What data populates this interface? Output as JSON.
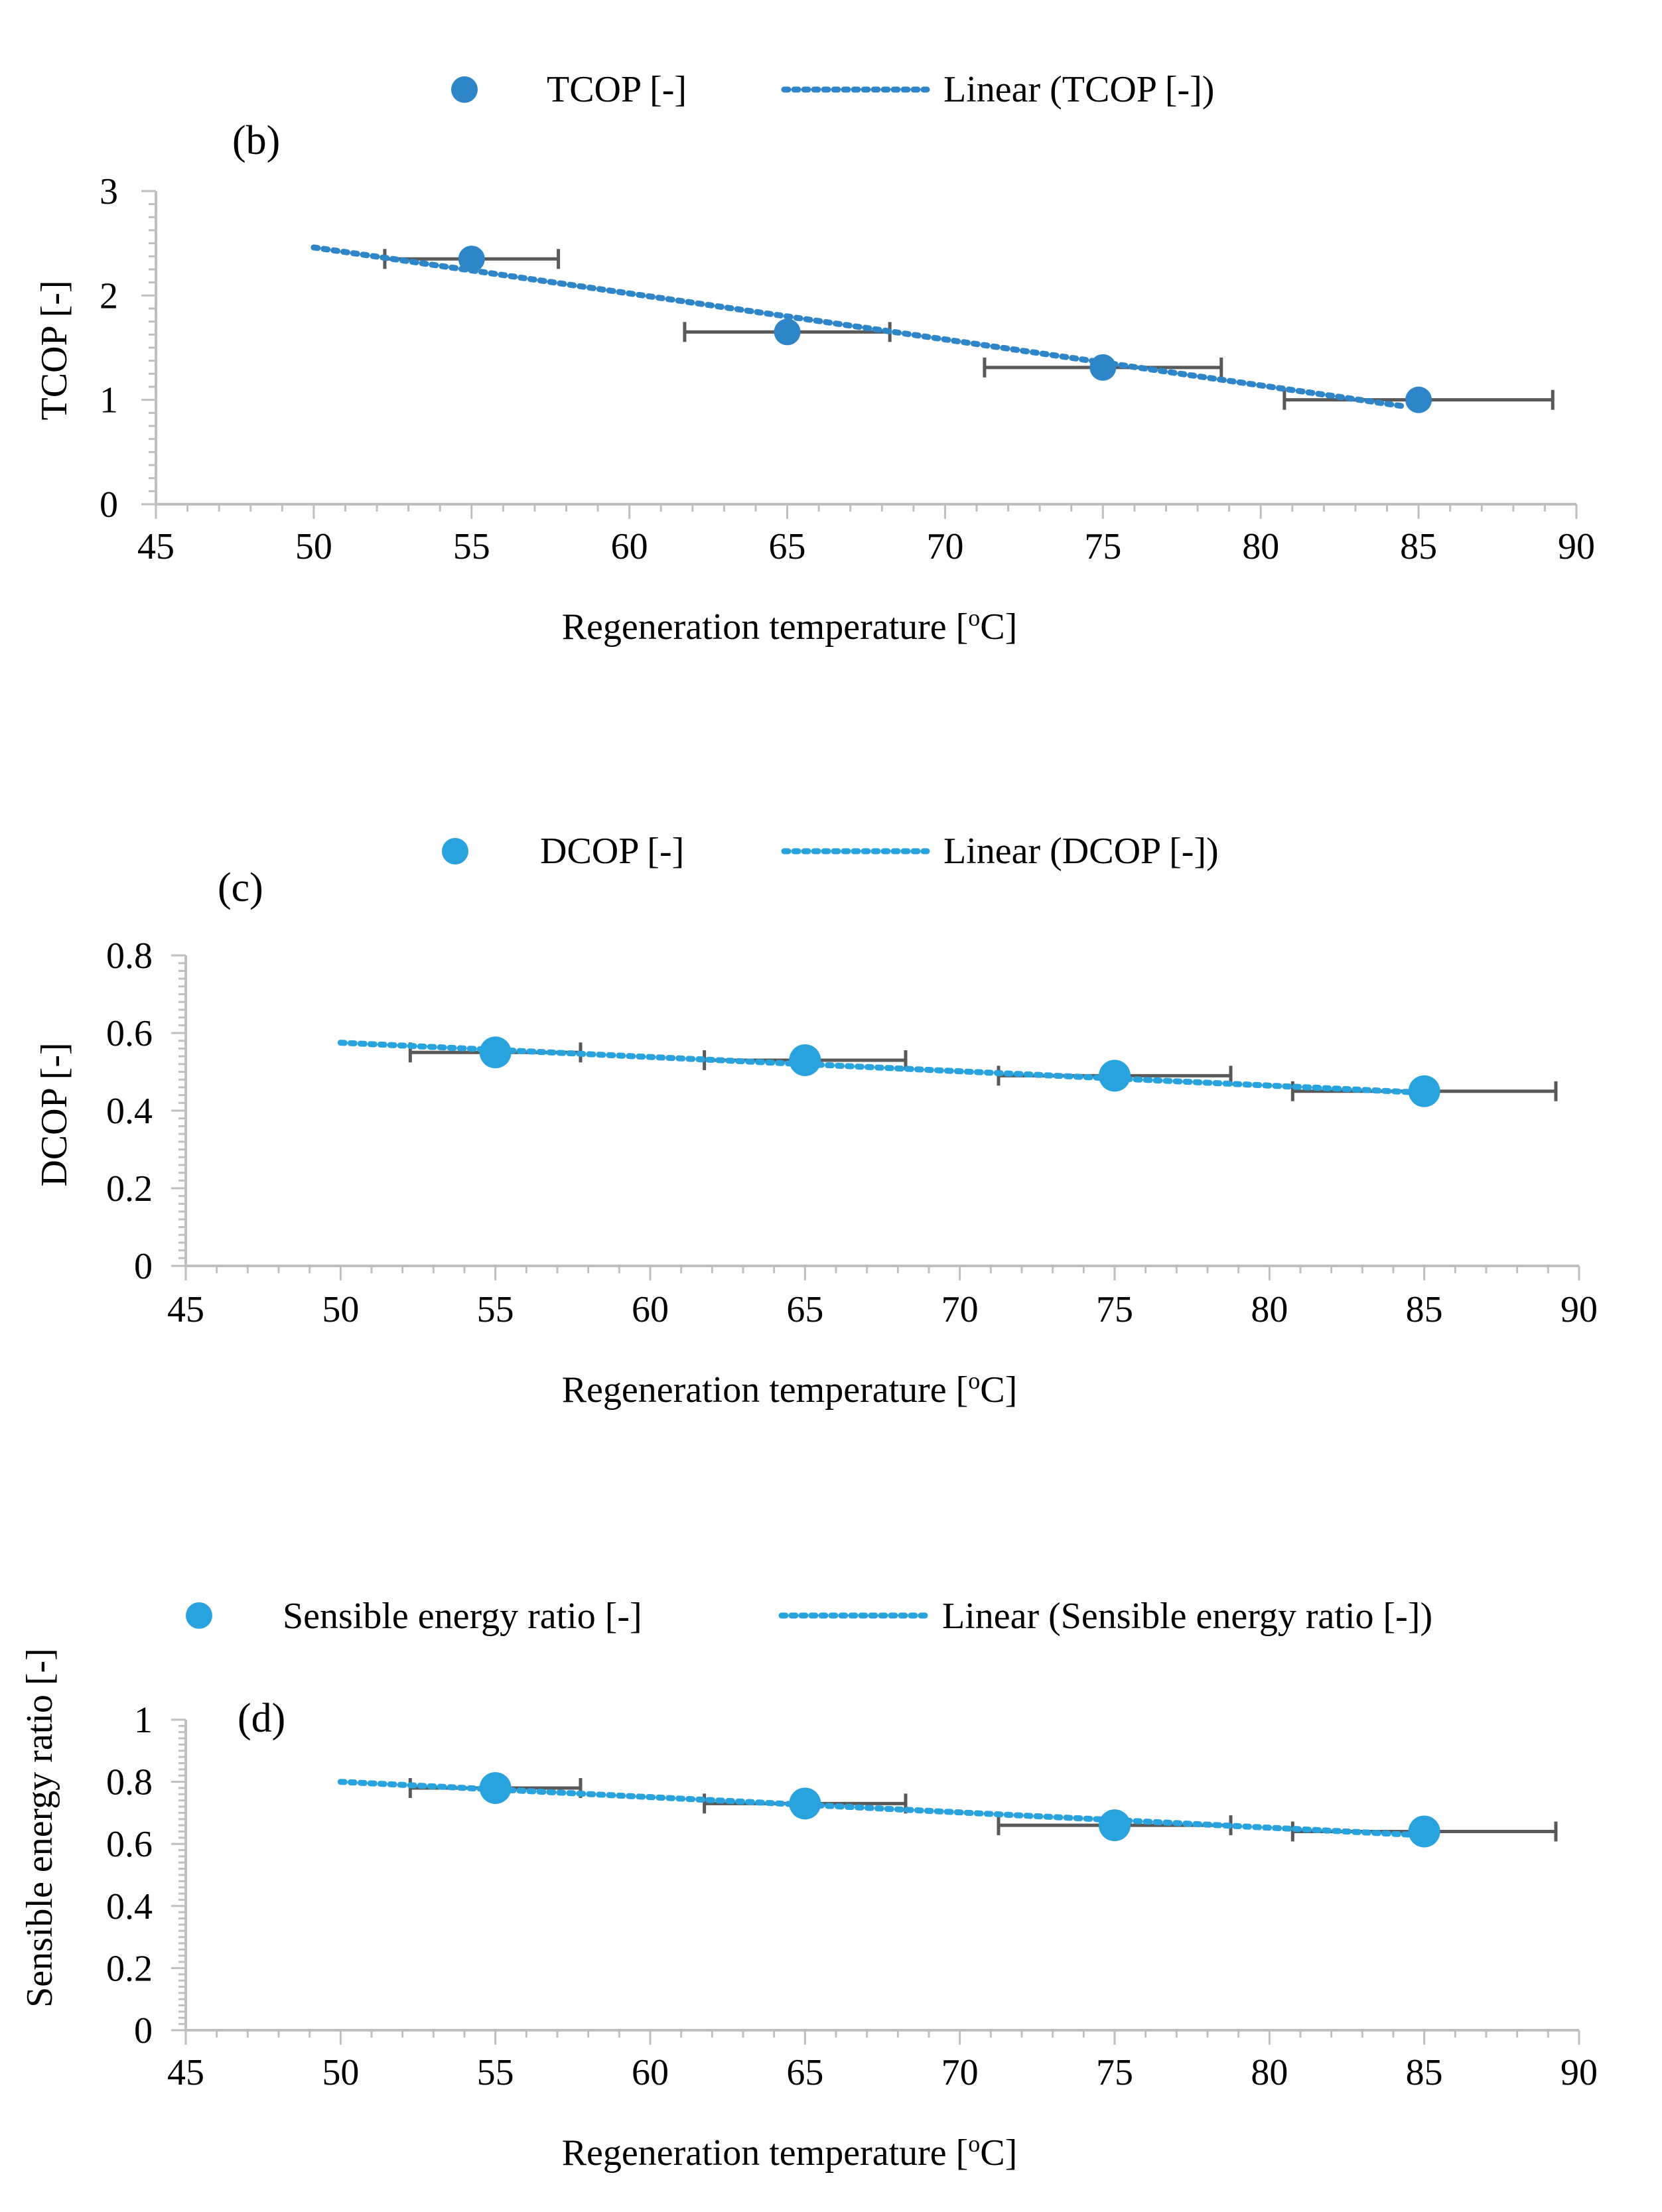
{
  "colors": {
    "axis": "#bfbfbf",
    "errorbar": "#595959",
    "text": "#000000"
  },
  "chart_data": [
    {
      "id": "b",
      "type": "scatter",
      "panel_label": "(b)",
      "xlabel": "Regeneration temperature [",
      "xlabel_sup": "o",
      "xlabel_end": "C]",
      "ylabel": "TCOP [-]",
      "xlim": [
        45,
        90
      ],
      "ylim": [
        0,
        3
      ],
      "xticks": [
        45,
        50,
        55,
        60,
        65,
        70,
        75,
        80,
        85,
        90
      ],
      "yticks": [
        0,
        1,
        2,
        3
      ],
      "ytick_labels": [
        "0",
        "1",
        "2",
        "3"
      ],
      "legend": {
        "position": "top-center",
        "series_label": "TCOP [-]",
        "trend_label": "Linear (TCOP [-])"
      },
      "color": "#2e86c8",
      "x": [
        55,
        65,
        75,
        85
      ],
      "y": [
        2.35,
        1.65,
        1.31,
        1.0
      ],
      "x_error": [
        2.75,
        3.25,
        3.75,
        4.25
      ],
      "y_error": [
        0.08,
        0.03,
        0.03,
        0.03
      ],
      "trendline": {
        "x_start": 50,
        "x_end": 84.5,
        "y_start": 2.46,
        "y_end": 0.94
      }
    },
    {
      "id": "c",
      "type": "scatter",
      "panel_label": "(c)",
      "xlabel": "Regeneration temperature [",
      "xlabel_sup": "o",
      "xlabel_end": "C]",
      "ylabel": "DCOP [-]",
      "xlim": [
        45,
        90
      ],
      "ylim": [
        0,
        0.8
      ],
      "xticks": [
        45,
        50,
        55,
        60,
        65,
        70,
        75,
        80,
        85,
        90
      ],
      "yticks": [
        0,
        0.2,
        0.4,
        0.6,
        0.8
      ],
      "ytick_labels": [
        "0",
        "0.2",
        "0.4",
        "0.6",
        "0.8"
      ],
      "legend": {
        "position": "top-center",
        "series_label": "DCOP [-]",
        "trend_label": "Linear (DCOP [-])"
      },
      "color": "#29a3dd",
      "x": [
        55,
        65,
        75,
        85
      ],
      "y": [
        0.55,
        0.53,
        0.49,
        0.45
      ],
      "x_error": [
        2.75,
        3.25,
        3.75,
        4.25
      ],
      "y_error": [
        0.01,
        0.01,
        0.01,
        0.01
      ],
      "trendline": {
        "x_start": 50,
        "x_end": 84.5,
        "y_start": 0.575,
        "y_end": 0.448
      }
    },
    {
      "id": "d",
      "type": "scatter",
      "panel_label": "(d)",
      "xlabel": "Regeneration temperature [",
      "xlabel_sup": "o",
      "xlabel_end": "C]",
      "ylabel": "Sensible energy ratio [-]",
      "xlim": [
        45,
        90
      ],
      "ylim": [
        0,
        1
      ],
      "xticks": [
        45,
        50,
        55,
        60,
        65,
        70,
        75,
        80,
        85,
        90
      ],
      "yticks": [
        0,
        0.2,
        0.4,
        0.6,
        0.8,
        1
      ],
      "ytick_labels": [
        "0",
        "0.2",
        "0.4",
        "0.6",
        "0.8",
        "1"
      ],
      "legend": {
        "position": "top-center",
        "series_label": "Sensible energy ratio [-]",
        "trend_label": "Linear (Sensible energy ratio [-])"
      },
      "color": "#29a3dd",
      "x": [
        55,
        65,
        75,
        85
      ],
      "y": [
        0.78,
        0.73,
        0.66,
        0.64
      ],
      "x_error": [
        2.75,
        3.25,
        3.75,
        4.25
      ],
      "y_error": [
        0.02,
        0.02,
        0.01,
        0.01
      ],
      "trendline": {
        "x_start": 50,
        "x_end": 84.5,
        "y_start": 0.8,
        "y_end": 0.63
      }
    }
  ]
}
